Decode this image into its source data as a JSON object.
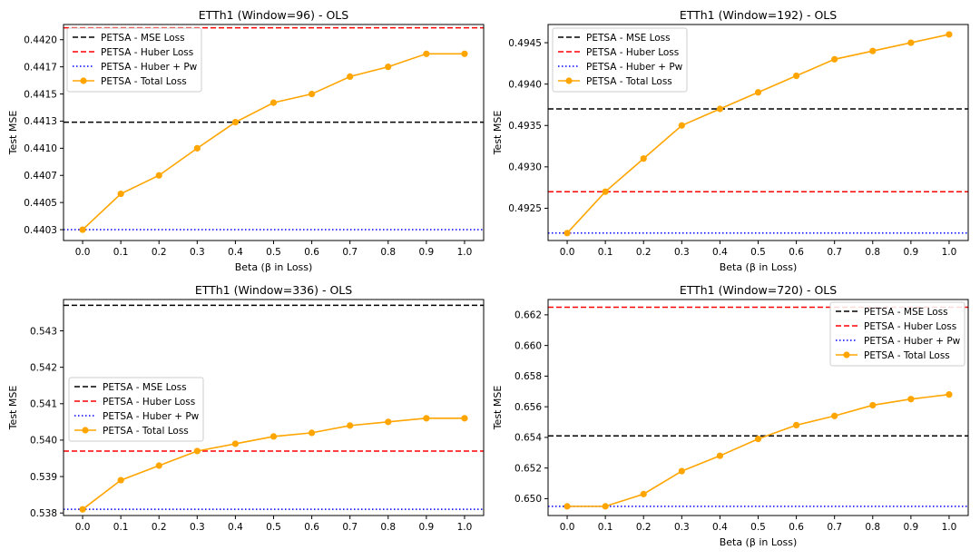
{
  "colors": {
    "mse": "#000000",
    "huber": "#ff0000",
    "huber_pw": "#0000ff",
    "total": "#ffa500"
  },
  "chart_data": [
    {
      "type": "line",
      "title": "ETTh1 (Window=96) - OLS",
      "xlabel": "Beta (β in Loss)",
      "ylabel": "Test MSE",
      "x": [
        0.0,
        0.1,
        0.2,
        0.3,
        0.4,
        0.5,
        0.6,
        0.7,
        0.8,
        0.9,
        1.0
      ],
      "xticks": [
        "0.0",
        "0.1",
        "0.2",
        "0.3",
        "0.4",
        "0.5",
        "0.6",
        "0.7",
        "0.8",
        "0.9",
        "1.0"
      ],
      "xlim": [
        -0.05,
        1.05
      ],
      "ylim": [
        0.44015,
        0.44214
      ],
      "yticks": [
        {
          "value": 0.44025,
          "label": "0.4403"
        },
        {
          "value": 0.4405,
          "label": "0.4405"
        },
        {
          "value": 0.44075,
          "label": "0.4407"
        },
        {
          "value": 0.441,
          "label": "0.4410"
        },
        {
          "value": 0.44125,
          "label": "0.4413"
        },
        {
          "value": 0.4415,
          "label": "0.4415"
        },
        {
          "value": 0.44175,
          "label": "0.4417"
        },
        {
          "value": 0.442,
          "label": "0.4420"
        }
      ],
      "hlines": [
        {
          "name": "PETSA - MSE Loss",
          "y": 0.44124,
          "style": "mse"
        },
        {
          "name": "PETSA - Huber Loss",
          "y": 0.44211,
          "style": "huber"
        },
        {
          "name": "PETSA - Huber + Pw",
          "y": 0.44025,
          "style": "huber_pw"
        }
      ],
      "series": [
        {
          "name": "PETSA - Total Loss",
          "values": [
            0.44025,
            0.44058,
            0.44075,
            0.441,
            0.44124,
            0.44142,
            0.4415,
            0.44166,
            0.44175,
            0.44187,
            0.44187
          ]
        }
      ],
      "legend": {
        "position": "top-left",
        "labels": [
          "PETSA - MSE Loss",
          "PETSA - Huber Loss",
          "PETSA - Huber + Pw",
          "PETSA - Total Loss"
        ]
      }
    },
    {
      "type": "line",
      "title": "ETTh1 (Window=192) - OLS",
      "xlabel": "Beta (β in Loss)",
      "ylabel": "Test MSE",
      "x": [
        0.0,
        0.1,
        0.2,
        0.3,
        0.4,
        0.5,
        0.6,
        0.7,
        0.8,
        0.9,
        1.0
      ],
      "xticks": [
        "0.0",
        "0.1",
        "0.2",
        "0.3",
        "0.4",
        "0.5",
        "0.6",
        "0.7",
        "0.8",
        "0.9",
        "1.0"
      ],
      "xlim": [
        -0.05,
        1.05
      ],
      "ylim": [
        0.49211,
        0.49472
      ],
      "yticks": [
        {
          "value": 0.4925,
          "label": "0.4925"
        },
        {
          "value": 0.493,
          "label": "0.4930"
        },
        {
          "value": 0.4935,
          "label": "0.4935"
        },
        {
          "value": 0.494,
          "label": "0.4940"
        },
        {
          "value": 0.4945,
          "label": "0.4945"
        }
      ],
      "hlines": [
        {
          "name": "PETSA - MSE Loss",
          "y": 0.4937,
          "style": "mse"
        },
        {
          "name": "PETSA - Huber Loss",
          "y": 0.4927,
          "style": "huber"
        },
        {
          "name": "PETSA - Huber + Pw",
          "y": 0.4922,
          "style": "huber_pw"
        }
      ],
      "series": [
        {
          "name": "PETSA - Total Loss",
          "values": [
            0.4922,
            0.4927,
            0.4931,
            0.4935,
            0.4937,
            0.4939,
            0.4941,
            0.4943,
            0.4944,
            0.4945,
            0.4946
          ]
        }
      ],
      "legend": {
        "position": "top-left",
        "labels": [
          "PETSA - MSE Loss",
          "PETSA - Huber Loss",
          "PETSA - Huber + Pw",
          "PETSA - Total Loss"
        ]
      }
    },
    {
      "type": "line",
      "title": "ETTh1 (Window=336) - OLS",
      "xlabel": "",
      "ylabel": "Test MSE",
      "x": [
        0.0,
        0.1,
        0.2,
        0.3,
        0.4,
        0.5,
        0.6,
        0.7,
        0.8,
        0.9,
        1.0
      ],
      "xticks": [
        "0.0",
        "0.1",
        "0.2",
        "0.3",
        "0.4",
        "0.5",
        "0.6",
        "0.7",
        "0.8",
        "0.9",
        "1.0"
      ],
      "xlim": [
        -0.05,
        1.05
      ],
      "ylim": [
        0.53793,
        0.54386
      ],
      "yticks": [
        {
          "value": 0.538,
          "label": "0.538"
        },
        {
          "value": 0.539,
          "label": "0.539"
        },
        {
          "value": 0.54,
          "label": "0.540"
        },
        {
          "value": 0.541,
          "label": "0.541"
        },
        {
          "value": 0.542,
          "label": "0.542"
        },
        {
          "value": 0.543,
          "label": "0.543"
        }
      ],
      "hlines": [
        {
          "name": "PETSA - MSE Loss",
          "y": 0.5437,
          "style": "mse"
        },
        {
          "name": "PETSA - Huber Loss",
          "y": 0.5397,
          "style": "huber"
        },
        {
          "name": "PETSA - Huber + Pw",
          "y": 0.5381,
          "style": "huber_pw"
        }
      ],
      "series": [
        {
          "name": "PETSA - Total Loss",
          "values": [
            0.5381,
            0.5389,
            0.5393,
            0.5397,
            0.5399,
            0.5401,
            0.5402,
            0.5404,
            0.5405,
            0.5406,
            0.5406
          ]
        }
      ],
      "legend": {
        "position": "center-left",
        "labels": [
          "PETSA - MSE Loss",
          "PETSA - Huber Loss",
          "PETSA - Huber + Pw",
          "PETSA - Total Loss"
        ]
      }
    },
    {
      "type": "line",
      "title": "ETTh1 (Window=720) - OLS",
      "xlabel": "Beta (β in Loss)",
      "ylabel": "Test MSE",
      "x": [
        0.0,
        0.1,
        0.2,
        0.3,
        0.4,
        0.5,
        0.6,
        0.7,
        0.8,
        0.9,
        1.0
      ],
      "xticks": [
        "0.0",
        "0.1",
        "0.2",
        "0.3",
        "0.4",
        "0.5",
        "0.6",
        "0.7",
        "0.8",
        "0.9",
        "1.0"
      ],
      "xlim": [
        -0.05,
        1.05
      ],
      "ylim": [
        0.6489,
        0.663
      ],
      "yticks": [
        {
          "value": 0.65,
          "label": "0.650"
        },
        {
          "value": 0.652,
          "label": "0.652"
        },
        {
          "value": 0.654,
          "label": "0.654"
        },
        {
          "value": 0.656,
          "label": "0.656"
        },
        {
          "value": 0.658,
          "label": "0.658"
        },
        {
          "value": 0.66,
          "label": "0.660"
        },
        {
          "value": 0.662,
          "label": "0.662"
        }
      ],
      "hlines": [
        {
          "name": "PETSA - MSE Loss",
          "y": 0.6541,
          "style": "mse"
        },
        {
          "name": "PETSA - Huber Loss",
          "y": 0.6625,
          "style": "huber"
        },
        {
          "name": "PETSA - Huber + Pw",
          "y": 0.6495,
          "style": "huber_pw"
        }
      ],
      "series": [
        {
          "name": "PETSA - Total Loss",
          "values": [
            0.6495,
            0.6495,
            0.6503,
            0.6518,
            0.6528,
            0.6539,
            0.6548,
            0.6554,
            0.6561,
            0.6565,
            0.6568
          ]
        }
      ],
      "legend": {
        "position": "top-right",
        "labels": [
          "PETSA - MSE Loss",
          "PETSA - Huber Loss",
          "PETSA - Huber + Pw",
          "PETSA - Total Loss"
        ]
      }
    }
  ]
}
